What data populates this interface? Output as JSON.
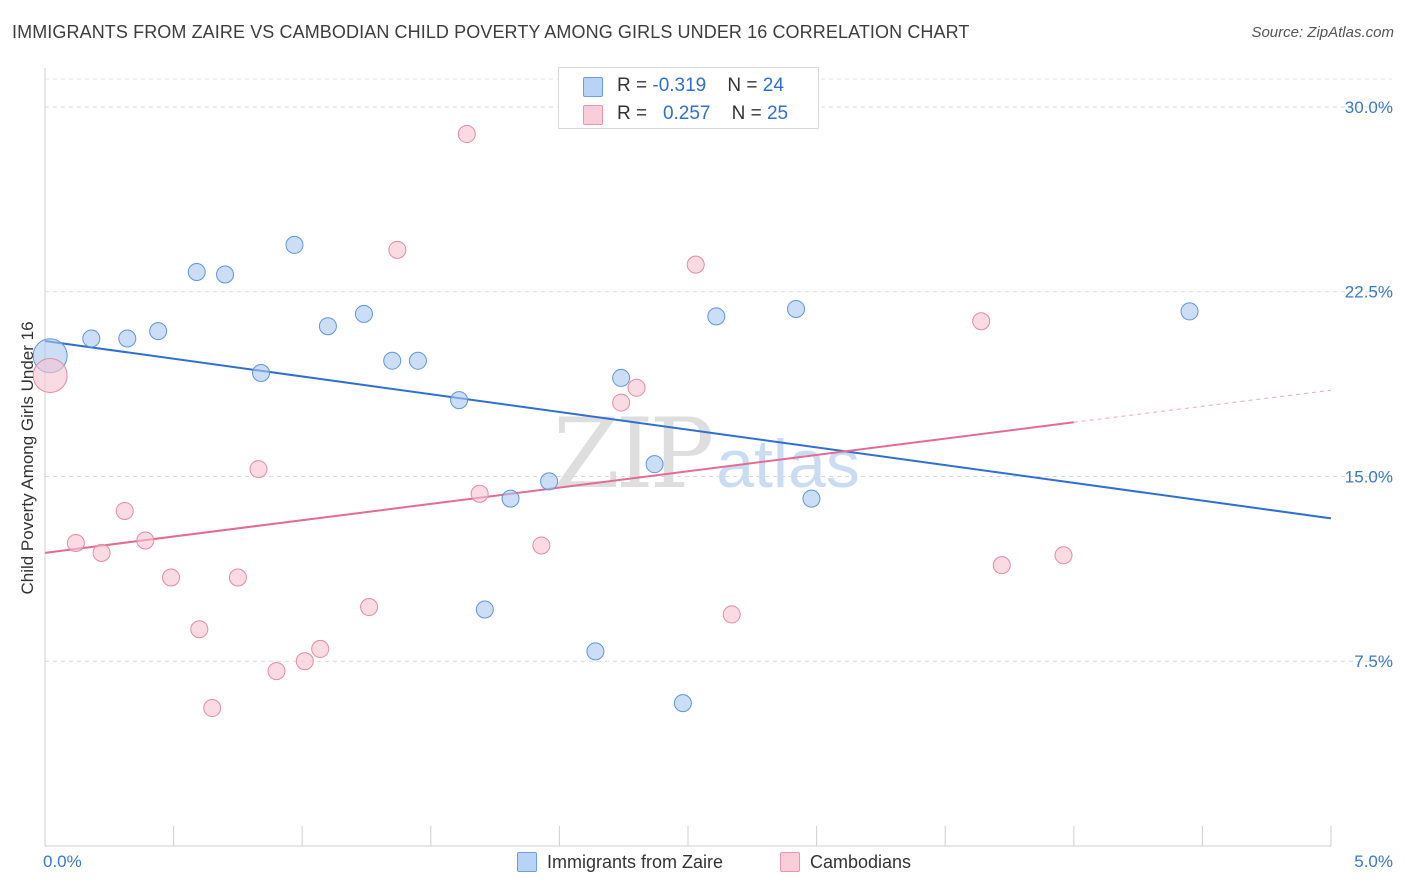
{
  "title": "IMMIGRANTS FROM ZAIRE VS CAMBODIAN CHILD POVERTY AMONG GIRLS UNDER 16 CORRELATION CHART",
  "source": "Source: ZipAtlas.com",
  "watermark": {
    "zip": "ZIP",
    "atlas": "atlas"
  },
  "legend_top": [
    {
      "r_label": "R = ",
      "r_value": "-0.319",
      "n_label": "N = ",
      "n_value": "24"
    },
    {
      "r_label": "R = ",
      "r_value": "0.257",
      "n_label": "N = ",
      "n_value": "25"
    }
  ],
  "chart_data": {
    "type": "scatter",
    "title": "IMMIGRANTS FROM ZAIRE VS CAMBODIAN CHILD POVERTY AMONG GIRLS UNDER 16 CORRELATION CHART",
    "xlabel": "",
    "ylabel": "Child Poverty Among Girls Under 16",
    "xlim": [
      0,
      5
    ],
    "ylim": [
      0,
      31.5
    ],
    "x_tick_labels": [
      "0.0%",
      "5.0%"
    ],
    "y_ticks": [
      7.5,
      15.0,
      22.5,
      30.0
    ],
    "y_tick_labels": [
      "7.5%",
      "15.0%",
      "22.5%",
      "30.0%"
    ],
    "grid": true,
    "legend_position": "bottom",
    "series": [
      {
        "name": "Immigrants from Zaire",
        "color": "#a9c8ef",
        "stroke": "#5f96d8",
        "line_color": "#2e6fd1",
        "r": -0.319,
        "n": 24,
        "trend": {
          "x": [
            0.0,
            5.0
          ],
          "y": [
            20.5,
            13.3
          ]
        },
        "points": [
          {
            "x": 0.02,
            "y": 19.9,
            "big": true
          },
          {
            "x": 0.18,
            "y": 20.6
          },
          {
            "x": 0.32,
            "y": 20.6
          },
          {
            "x": 0.44,
            "y": 20.9
          },
          {
            "x": 0.59,
            "y": 23.3
          },
          {
            "x": 0.7,
            "y": 23.2
          },
          {
            "x": 0.84,
            "y": 19.2
          },
          {
            "x": 0.97,
            "y": 24.4
          },
          {
            "x": 1.1,
            "y": 21.1
          },
          {
            "x": 1.24,
            "y": 21.6
          },
          {
            "x": 1.35,
            "y": 19.7
          },
          {
            "x": 1.45,
            "y": 19.7
          },
          {
            "x": 1.61,
            "y": 18.1
          },
          {
            "x": 1.71,
            "y": 9.6
          },
          {
            "x": 1.81,
            "y": 14.1
          },
          {
            "x": 1.96,
            "y": 14.8
          },
          {
            "x": 2.14,
            "y": 7.9
          },
          {
            "x": 2.24,
            "y": 19.0
          },
          {
            "x": 2.37,
            "y": 15.5
          },
          {
            "x": 2.48,
            "y": 5.8
          },
          {
            "x": 2.61,
            "y": 21.5
          },
          {
            "x": 2.92,
            "y": 21.8
          },
          {
            "x": 2.98,
            "y": 14.1
          },
          {
            "x": 4.45,
            "y": 21.7
          }
        ]
      },
      {
        "name": "Cambodians",
        "color": "#f7c3d2",
        "stroke": "#e58aa6",
        "line_color": "#e36c93",
        "r": 0.257,
        "n": 25,
        "trend": {
          "x": [
            0.0,
            4.0
          ],
          "y": [
            11.9,
            17.2
          ]
        },
        "trend_dashed": {
          "x": [
            4.0,
            5.0
          ],
          "y": [
            17.2,
            18.5
          ]
        },
        "points": [
          {
            "x": 0.02,
            "y": 19.1,
            "big": true
          },
          {
            "x": 0.12,
            "y": 12.3
          },
          {
            "x": 0.22,
            "y": 11.9
          },
          {
            "x": 0.31,
            "y": 13.6
          },
          {
            "x": 0.39,
            "y": 12.4
          },
          {
            "x": 0.49,
            "y": 10.9
          },
          {
            "x": 0.6,
            "y": 8.8
          },
          {
            "x": 0.65,
            "y": 5.6
          },
          {
            "x": 0.75,
            "y": 10.9
          },
          {
            "x": 0.83,
            "y": 15.3
          },
          {
            "x": 0.9,
            "y": 7.1
          },
          {
            "x": 1.01,
            "y": 7.5
          },
          {
            "x": 1.07,
            "y": 8.0
          },
          {
            "x": 1.26,
            "y": 9.7
          },
          {
            "x": 1.37,
            "y": 24.2
          },
          {
            "x": 1.64,
            "y": 28.9
          },
          {
            "x": 1.69,
            "y": 14.3
          },
          {
            "x": 1.93,
            "y": 12.2
          },
          {
            "x": 2.24,
            "y": 18.0
          },
          {
            "x": 2.3,
            "y": 18.6
          },
          {
            "x": 2.53,
            "y": 23.6
          },
          {
            "x": 2.67,
            "y": 9.4
          },
          {
            "x": 3.64,
            "y": 21.3
          },
          {
            "x": 3.72,
            "y": 11.4
          },
          {
            "x": 3.96,
            "y": 11.8
          }
        ]
      }
    ]
  }
}
